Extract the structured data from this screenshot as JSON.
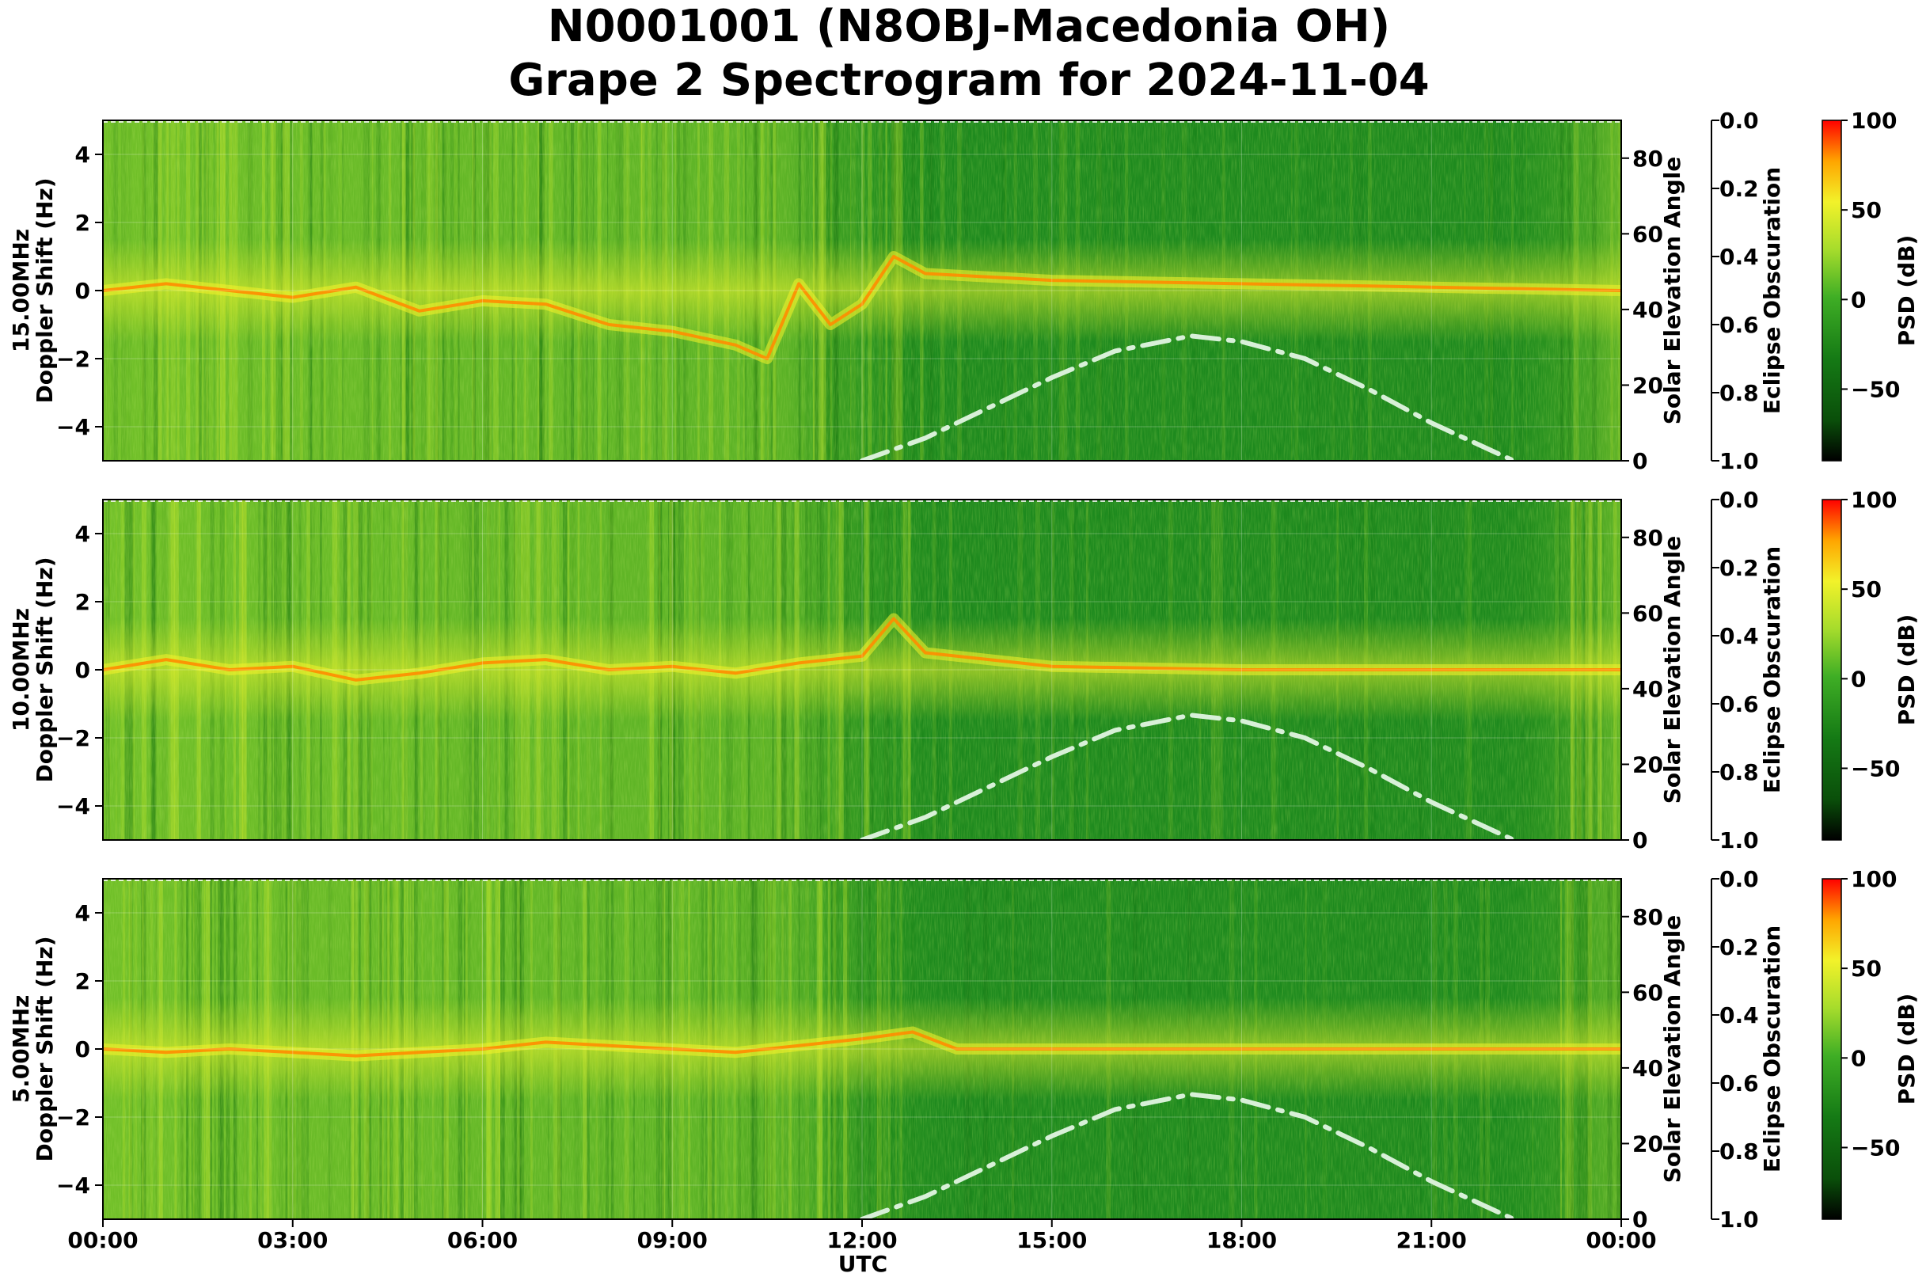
{
  "title_line1": "N0001001 (N8OBJ-Macedonia OH)",
  "title_line2": "Grape 2 Spectrogram for 2024-11-04",
  "xlabel": "UTC",
  "x_ticks": [
    "00:00",
    "03:00",
    "06:00",
    "09:00",
    "12:00",
    "15:00",
    "18:00",
    "21:00",
    "00:00"
  ],
  "colors": {
    "spectrogram_background": "#228b22",
    "colormap": [
      "#000000",
      "#0a5a0a",
      "#1f8a1f",
      "#5cc22a",
      "#e6f030",
      "#ff9a00",
      "#ff0000"
    ],
    "solar_curve": "#d8f0d8"
  },
  "chart_data": [
    {
      "type": "heatmap",
      "panel_label": "15.00MHz",
      "ylabel": "Doppler Shift (Hz)",
      "ylim": [
        -5,
        5
      ],
      "y_ticks": [
        "4",
        "2",
        "0",
        "−2",
        "−4"
      ],
      "x_range_hours": [
        0,
        24
      ],
      "right_axis_label": "Solar Elevation Angle",
      "right_axis_ylim": [
        0,
        90
      ],
      "right_axis_ticks": [
        "80",
        "60",
        "40",
        "20",
        "0"
      ],
      "eclipse_axis_label": "Eclipse Obscuration",
      "eclipse_axis_ylim": [
        1.0,
        0.0
      ],
      "eclipse_axis_ticks": [
        "0.0",
        "0.2",
        "0.4",
        "0.6",
        "0.8",
        "1.0"
      ],
      "colorbar_label": "PSD (dB)",
      "colorbar_range": [
        -90,
        100
      ],
      "colorbar_ticks": [
        "100",
        "50",
        "0",
        "−50"
      ],
      "doppler_trace": [
        [
          0,
          0.0
        ],
        [
          1,
          0.2
        ],
        [
          2,
          0.0
        ],
        [
          3,
          -0.2
        ],
        [
          4,
          0.1
        ],
        [
          5,
          -0.6
        ],
        [
          6,
          -0.3
        ],
        [
          7,
          -0.4
        ],
        [
          8,
          -1.0
        ],
        [
          9,
          -1.2
        ],
        [
          10,
          -1.6
        ],
        [
          10.5,
          -2.0
        ],
        [
          11,
          0.2
        ],
        [
          11.5,
          -1.0
        ],
        [
          12,
          -0.4
        ],
        [
          12.5,
          1.0
        ],
        [
          13,
          0.5
        ],
        [
          15,
          0.3
        ],
        [
          18,
          0.2
        ],
        [
          21,
          0.1
        ],
        [
          24,
          0.0
        ]
      ],
      "solar_elevation": [
        [
          12.0,
          0
        ],
        [
          13,
          6
        ],
        [
          14,
          14
        ],
        [
          15,
          22
        ],
        [
          16,
          29
        ],
        [
          17.2,
          33
        ],
        [
          18,
          31.5
        ],
        [
          19,
          27
        ],
        [
          20,
          19
        ],
        [
          21,
          10
        ],
        [
          22.3,
          0
        ]
      ]
    },
    {
      "type": "heatmap",
      "panel_label": "10.00MHz",
      "ylabel": "Doppler Shift (Hz)",
      "ylim": [
        -5,
        5
      ],
      "y_ticks": [
        "4",
        "2",
        "0",
        "−2",
        "−4"
      ],
      "x_range_hours": [
        0,
        24
      ],
      "right_axis_label": "Solar Elevation Angle",
      "right_axis_ylim": [
        0,
        90
      ],
      "right_axis_ticks": [
        "80",
        "60",
        "40",
        "20",
        "0"
      ],
      "eclipse_axis_label": "Eclipse Obscuration",
      "eclipse_axis_ylim": [
        1.0,
        0.0
      ],
      "eclipse_axis_ticks": [
        "0.0",
        "0.2",
        "0.4",
        "0.6",
        "0.8",
        "1.0"
      ],
      "colorbar_label": "PSD (dB)",
      "colorbar_range": [
        -90,
        100
      ],
      "colorbar_ticks": [
        "100",
        "50",
        "0",
        "−50"
      ],
      "doppler_trace": [
        [
          0,
          0.0
        ],
        [
          1,
          0.3
        ],
        [
          2,
          0.0
        ],
        [
          3,
          0.1
        ],
        [
          4,
          -0.3
        ],
        [
          5,
          -0.1
        ],
        [
          6,
          0.2
        ],
        [
          7,
          0.3
        ],
        [
          8,
          0.0
        ],
        [
          9,
          0.1
        ],
        [
          10,
          -0.1
        ],
        [
          11,
          0.2
        ],
        [
          12,
          0.4
        ],
        [
          12.5,
          1.5
        ],
        [
          13,
          0.5
        ],
        [
          15,
          0.1
        ],
        [
          18,
          0.0
        ],
        [
          21,
          0.0
        ],
        [
          24,
          0.0
        ]
      ],
      "solar_elevation": [
        [
          12.0,
          0
        ],
        [
          13,
          6
        ],
        [
          14,
          14
        ],
        [
          15,
          22
        ],
        [
          16,
          29
        ],
        [
          17.2,
          33
        ],
        [
          18,
          31.5
        ],
        [
          19,
          27
        ],
        [
          20,
          19
        ],
        [
          21,
          10
        ],
        [
          22.3,
          0
        ]
      ]
    },
    {
      "type": "heatmap",
      "panel_label": "5.00MHz",
      "ylabel": "Doppler Shift (Hz)",
      "ylim": [
        -5,
        5
      ],
      "y_ticks": [
        "4",
        "2",
        "0",
        "−2",
        "−4"
      ],
      "x_range_hours": [
        0,
        24
      ],
      "right_axis_label": "Solar Elevation Angle",
      "right_axis_ylim": [
        0,
        90
      ],
      "right_axis_ticks": [
        "80",
        "60",
        "40",
        "20",
        "0"
      ],
      "eclipse_axis_label": "Eclipse Obscuration",
      "eclipse_axis_ylim": [
        1.0,
        0.0
      ],
      "eclipse_axis_ticks": [
        "0.0",
        "0.2",
        "0.4",
        "0.6",
        "0.8",
        "1.0"
      ],
      "colorbar_label": "PSD (dB)",
      "colorbar_range": [
        -90,
        100
      ],
      "colorbar_ticks": [
        "100",
        "50",
        "0",
        "−50"
      ],
      "doppler_trace": [
        [
          0,
          0.0
        ],
        [
          1,
          -0.1
        ],
        [
          2,
          0.0
        ],
        [
          3,
          -0.1
        ],
        [
          4,
          -0.2
        ],
        [
          5,
          -0.1
        ],
        [
          6,
          0.0
        ],
        [
          7,
          0.2
        ],
        [
          8,
          0.1
        ],
        [
          9,
          0.0
        ],
        [
          10,
          -0.1
        ],
        [
          11,
          0.1
        ],
        [
          12,
          0.3
        ],
        [
          12.8,
          0.5
        ],
        [
          13.5,
          0.0
        ],
        [
          24,
          0.0
        ]
      ],
      "solar_elevation": [
        [
          12.0,
          0
        ],
        [
          13,
          6
        ],
        [
          14,
          14
        ],
        [
          15,
          22
        ],
        [
          16,
          29
        ],
        [
          17.2,
          33
        ],
        [
          18,
          31.5
        ],
        [
          19,
          27
        ],
        [
          20,
          19
        ],
        [
          21,
          10
        ],
        [
          22.3,
          0
        ]
      ]
    }
  ]
}
